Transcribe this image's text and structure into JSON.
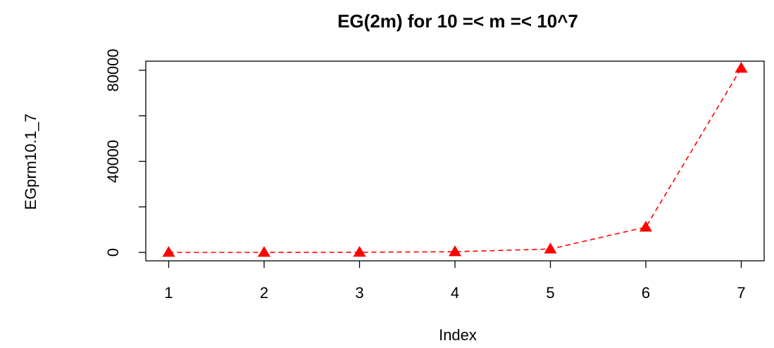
{
  "chart_data": {
    "type": "line",
    "title": "EG(2m) for 10 =< m =< 10^7",
    "xlabel": "Index",
    "ylabel": "EGprm10.1_7",
    "x": [
      1,
      2,
      3,
      4,
      5,
      6,
      7
    ],
    "series": [
      {
        "name": "EGprm10.1_7",
        "color": "#ff0000",
        "values": [
          2,
          10,
          60,
          300,
          1500,
          11100,
          80900
        ]
      }
    ],
    "xlim": [
      0.76,
      7.24
    ],
    "xticks": [
      1,
      2,
      3,
      4,
      5,
      6,
      7
    ],
    "ylim": [
      -3700,
      84000
    ],
    "yticks": [
      0,
      {
        "value": 20000,
        "label": null
      },
      40000,
      {
        "value": 60000,
        "label": null
      },
      80000
    ]
  }
}
